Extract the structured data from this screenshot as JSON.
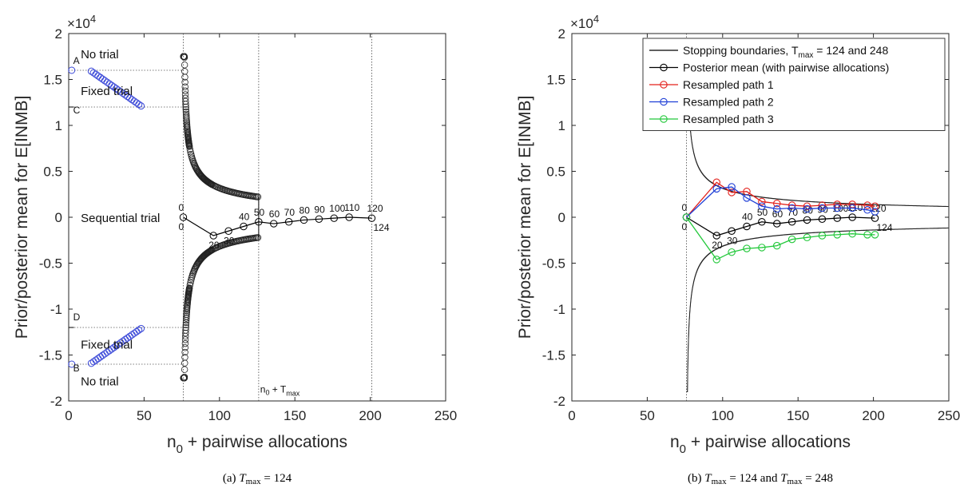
{
  "chart_data": [
    {
      "type": "scatter",
      "panel": "a",
      "caption_prefix": "(a) ",
      "caption_T": "T",
      "caption_sub": "max",
      "caption_suffix": " = 124",
      "xlabel_main": "n",
      "xlabel_sub": "0",
      "xlabel_rest": " + pairwise allocations",
      "ylabel": "Prior/posterior mean for E[INMB]",
      "exponent_times": "×10",
      "exponent_power": "4",
      "xlim": [
        0,
        250
      ],
      "ylim": [
        -2,
        2
      ],
      "xticks": [
        0,
        50,
        100,
        150,
        200,
        250
      ],
      "yticks": [
        -2,
        -1.5,
        -1,
        -0.5,
        0,
        0.5,
        1,
        1.5,
        2
      ],
      "ytick_labels": [
        "-2",
        "-1.5",
        "-1",
        "-0.5",
        "0",
        "0.5",
        "1",
        "1.5",
        "2"
      ],
      "vlines_dotted": [
        76,
        126,
        201
      ],
      "region_labels": [
        {
          "text": "No trial",
          "x": 8,
          "y": 1.73
        },
        {
          "text": "Fixed trial",
          "x": 8,
          "y": 1.33
        },
        {
          "text": "Sequential trial",
          "x": 8,
          "y": -0.05
        },
        {
          "text": "Fixed trial",
          "x": 8,
          "y": -1.43
        },
        {
          "text": "No trial",
          "x": 8,
          "y": -1.83
        }
      ],
      "point_labels": [
        {
          "text": "A",
          "x": 3,
          "y": 1.67
        },
        {
          "text": "C",
          "x": 3,
          "y": 1.13
        },
        {
          "text": "D",
          "x": 3,
          "y": -1.12
        },
        {
          "text": "B",
          "x": 3,
          "y": -1.68
        }
      ],
      "threshold_lines": [
        {
          "y": 1.6,
          "x_from": 0,
          "x_to": 76
        },
        {
          "y": 1.2,
          "x_from": 0,
          "x_to": 76
        },
        {
          "y": -1.2,
          "x_from": 0,
          "x_to": 76
        },
        {
          "y": -1.6,
          "x_from": 0,
          "x_to": 76
        }
      ],
      "nT_label": {
        "main": "n",
        "sub0": "0",
        "plus": " + T",
        "sub": "max",
        "x": 127,
        "y": -1.91
      },
      "blue_upper": {
        "x_start": 15,
        "x_end": 49,
        "y_start": 1.59,
        "y_end": 1.2,
        "step": 1.5
      },
      "blue_lower": {
        "x_start": 15,
        "x_end": 49,
        "y_start": -1.59,
        "y_end": -1.2,
        "step": 1.5
      },
      "blue_points": [
        {
          "x": 2,
          "y": 1.6
        },
        {
          "x": 2,
          "y": -1.6
        }
      ],
      "boundary": {
        "x_start": 76,
        "x_end": 126,
        "scale": 0.22,
        "offset": 76,
        "ymax": 1.75
      },
      "path": {
        "x": [
          76,
          96,
          106,
          116,
          126,
          136,
          146,
          156,
          166,
          176,
          186,
          201
        ],
        "y": [
          0,
          -0.2,
          -0.15,
          -0.1,
          -0.05,
          -0.07,
          -0.05,
          -0.03,
          -0.02,
          -0.01,
          0,
          -0.01
        ],
        "labels": [
          "0",
          "20",
          "30",
          "40",
          "50",
          "60",
          "70",
          "80",
          "90",
          "100",
          "110",
          "120"
        ],
        "end_label": "124"
      }
    },
    {
      "type": "line",
      "panel": "b",
      "caption_prefix": "(b) ",
      "caption_T": "T",
      "caption_sub": "max",
      "caption_mid": " = 124 and ",
      "caption_T2": "T",
      "caption_sub2": "max",
      "caption_suffix": " = 248",
      "xlabel_main": "n",
      "xlabel_sub": "0",
      "xlabel_rest": " + pairwise allocations",
      "ylabel": "Prior/posterior mean for E[INMB]",
      "exponent_times": "×10",
      "exponent_power": "4",
      "xlim": [
        0,
        250
      ],
      "ylim": [
        -2,
        2
      ],
      "xticks": [
        0,
        50,
        100,
        150,
        200,
        250
      ],
      "yticks": [
        -2,
        -1.5,
        -1,
        -0.5,
        0,
        0.5,
        1,
        1.5,
        2
      ],
      "ytick_labels": [
        "-2",
        "-1.5",
        "-1",
        "-0.5",
        "0",
        "0.5",
        "1",
        "1.5",
        "2"
      ],
      "vlines_dotted": [
        76
      ],
      "legend": {
        "position": "top-right",
        "entries": [
          {
            "pre": "Stopping boundaries, T",
            "sub": "max",
            "post": " = 124 and 248",
            "color": "#000000",
            "marker": false
          },
          {
            "pre": "Posterior mean (with pairwise allocations)",
            "sub": "",
            "post": "",
            "color": "#000000",
            "marker": true
          },
          {
            "pre": "Resampled path 1",
            "sub": "",
            "post": "",
            "color": "#e3201b",
            "marker": true
          },
          {
            "pre": "Resampled path 2",
            "sub": "",
            "post": "",
            "color": "#1f3fd6",
            "marker": true
          },
          {
            "pre": "Resampled path 3",
            "sub": "",
            "post": "",
            "color": "#22c83a",
            "marker": true
          }
        ]
      },
      "boundary": {
        "x_start": 76,
        "x_end": 250,
        "scale": 0.22,
        "offset": 76,
        "ymax": 1.9
      },
      "series": [
        {
          "name": "Posterior mean (with pairwise allocations)",
          "color": "#000000",
          "x": [
            76,
            96,
            106,
            116,
            126,
            136,
            146,
            156,
            166,
            176,
            186,
            201
          ],
          "y": [
            0,
            -0.2,
            -0.15,
            -0.1,
            -0.05,
            -0.07,
            -0.05,
            -0.03,
            -0.02,
            -0.01,
            0,
            -0.01
          ],
          "labels": [
            "0",
            "20",
            "30",
            "40",
            "50",
            "60",
            "70",
            "80",
            "90",
            "100",
            "110",
            "120"
          ],
          "end_label": "124"
        },
        {
          "name": "Resampled path 1",
          "color": "#e3201b",
          "x": [
            76,
            96,
            106,
            116,
            126,
            136,
            146,
            156,
            166,
            176,
            186,
            196,
            201
          ],
          "y": [
            0,
            0.38,
            0.27,
            0.28,
            0.17,
            0.15,
            0.13,
            0.12,
            0.13,
            0.14,
            0.14,
            0.13,
            0.12
          ]
        },
        {
          "name": "Resampled path 2",
          "color": "#1f3fd6",
          "x": [
            76,
            96,
            106,
            116,
            126,
            136,
            146,
            156,
            166,
            176,
            186,
            196,
            201
          ],
          "y": [
            0,
            0.31,
            0.33,
            0.21,
            0.12,
            0.09,
            0.1,
            0.09,
            0.1,
            0.1,
            0.1,
            0.08,
            0.06
          ]
        },
        {
          "name": "Resampled path 3",
          "color": "#22c83a",
          "x": [
            76,
            96,
            106,
            116,
            126,
            136,
            146,
            156,
            166,
            176,
            186,
            196,
            201
          ],
          "y": [
            0,
            -0.46,
            -0.38,
            -0.34,
            -0.33,
            -0.31,
            -0.24,
            -0.22,
            -0.2,
            -0.19,
            -0.18,
            -0.19,
            -0.19
          ]
        }
      ]
    }
  ]
}
